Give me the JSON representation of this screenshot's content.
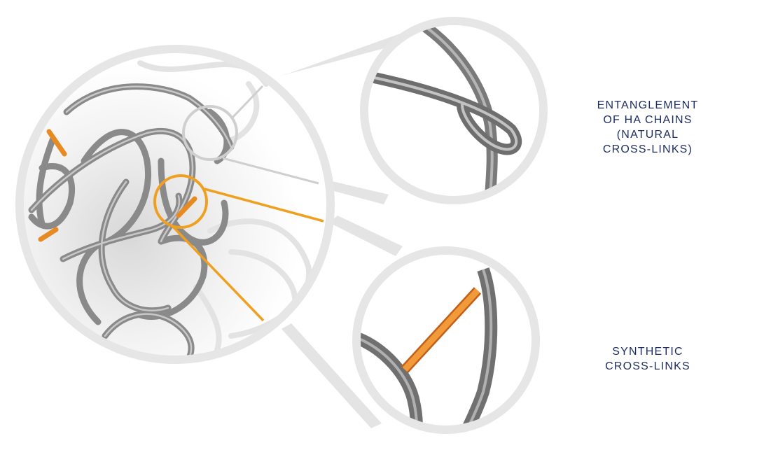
{
  "labels": {
    "natural": "ENTANGLEMENT\nOF HA CHAINS\n(NATURAL\nCROSS-LINKS)",
    "synthetic": "SYNTHETIC\nCROSS-LINKS"
  },
  "colors": {
    "caption_text": "#1d2c5e",
    "chain_gray": "#8a8a8a",
    "chain_highlight": "#c8c8c8",
    "cross_link_orange": "#f0a020",
    "callout_gray": "#dcdcdc",
    "lens_ring": "#e6e6e6"
  }
}
